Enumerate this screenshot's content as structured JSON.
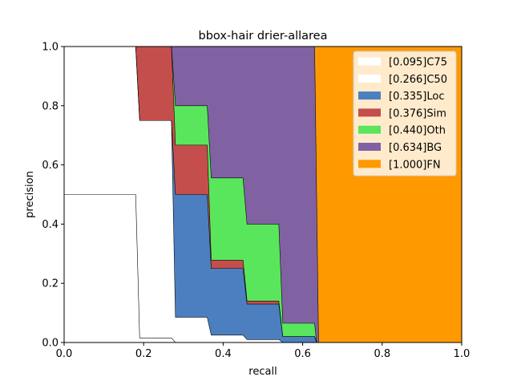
{
  "chart_data": {
    "type": "area",
    "title": "bbox-hair drier-allarea",
    "xlabel": "recall",
    "ylabel": "precision",
    "xlim": [
      0,
      1
    ],
    "ylim": [
      0,
      1
    ],
    "xticks": [
      "0.0",
      "0.2",
      "0.4",
      "0.6",
      "0.8",
      "1.0"
    ],
    "yticks": [
      "0.0",
      "0.2",
      "0.4",
      "0.6",
      "0.8",
      "1.0"
    ],
    "grid": false,
    "legend_position": "top-right",
    "series": [
      {
        "name": "[0.095]C75",
        "color": "#ffffff",
        "curve": [
          [
            0,
            0.5
          ],
          [
            0.18,
            0.5
          ],
          [
            0.19,
            0.015
          ],
          [
            0.27,
            0.015
          ],
          [
            0.28,
            0
          ],
          [
            1,
            0
          ]
        ]
      },
      {
        "name": "[0.266]C50",
        "color": "#ffffff",
        "curve": [
          [
            0,
            1
          ],
          [
            0.18,
            1
          ],
          [
            0.19,
            0.75
          ],
          [
            0.27,
            0.75
          ],
          [
            0.28,
            0.085
          ],
          [
            0.36,
            0.085
          ],
          [
            0.37,
            0.025
          ],
          [
            0.45,
            0.025
          ],
          [
            0.46,
            0.01
          ],
          [
            0.54,
            0.01
          ],
          [
            0.55,
            0
          ],
          [
            1,
            0
          ]
        ]
      },
      {
        "name": "[0.335]Loc",
        "color": "#4c7fc0",
        "curve": [
          [
            0,
            1
          ],
          [
            0.18,
            1
          ],
          [
            0.19,
            0.75
          ],
          [
            0.27,
            0.75
          ],
          [
            0.28,
            0.5
          ],
          [
            0.36,
            0.5
          ],
          [
            0.37,
            0.25
          ],
          [
            0.45,
            0.25
          ],
          [
            0.46,
            0.13
          ],
          [
            0.54,
            0.13
          ],
          [
            0.55,
            0.02
          ],
          [
            0.63,
            0.02
          ],
          [
            0.635,
            0
          ],
          [
            1,
            0
          ]
        ]
      },
      {
        "name": "[0.376]Sim",
        "color": "#c44e4c",
        "curve": [
          [
            0,
            1
          ],
          [
            0.18,
            1
          ],
          [
            0.19,
            1
          ],
          [
            0.27,
            1
          ],
          [
            0.28,
            0.667
          ],
          [
            0.36,
            0.667
          ],
          [
            0.37,
            0.278
          ],
          [
            0.45,
            0.278
          ],
          [
            0.46,
            0.14
          ],
          [
            0.54,
            0.14
          ],
          [
            0.55,
            0.02
          ],
          [
            0.63,
            0.02
          ],
          [
            0.635,
            0
          ],
          [
            1,
            0
          ]
        ]
      },
      {
        "name": "[0.440]Oth",
        "color": "#5ae65c",
        "curve": [
          [
            0,
            1
          ],
          [
            0.18,
            1
          ],
          [
            0.19,
            1
          ],
          [
            0.27,
            1
          ],
          [
            0.28,
            0.8
          ],
          [
            0.36,
            0.8
          ],
          [
            0.37,
            0.556
          ],
          [
            0.45,
            0.556
          ],
          [
            0.46,
            0.4
          ],
          [
            0.54,
            0.4
          ],
          [
            0.55,
            0.065
          ],
          [
            0.63,
            0.065
          ],
          [
            0.635,
            0
          ],
          [
            1,
            0
          ]
        ]
      },
      {
        "name": "[0.634]BG",
        "color": "#8062a3",
        "curve": [
          [
            0,
            1
          ],
          [
            0.63,
            1
          ],
          [
            0.64,
            0
          ],
          [
            1,
            0
          ]
        ]
      },
      {
        "name": "[1.000]FN",
        "color": "#ff9900",
        "curve": [
          [
            0,
            1
          ],
          [
            1,
            1
          ],
          [
            1,
            0
          ]
        ]
      }
    ]
  }
}
